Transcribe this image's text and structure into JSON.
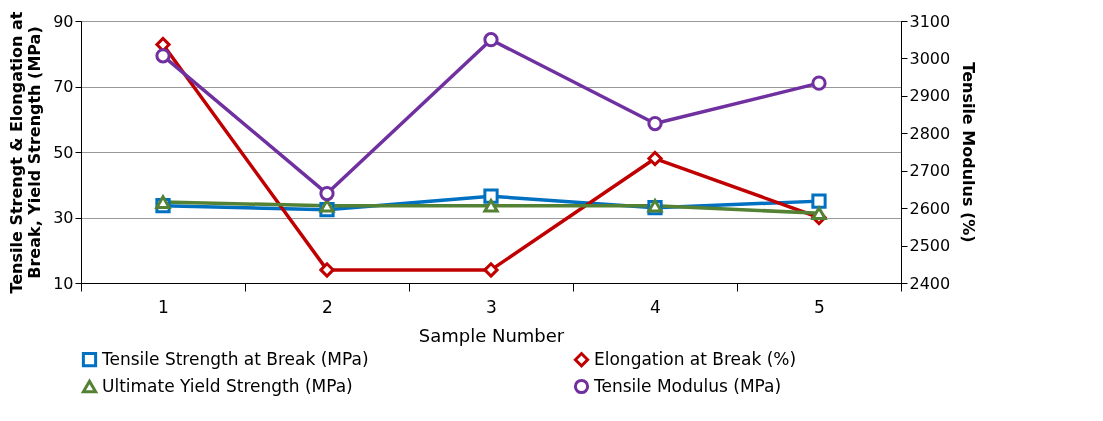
{
  "chart_data": {
    "type": "line",
    "xlabel": "Sample Number",
    "ylabel": "Tensile Strengt & Elongation at Break, Yield Strength (MPa)",
    "y2label": "Tensile Modulus (%)",
    "categories": [
      "1",
      "2",
      "3",
      "4",
      "5"
    ],
    "ylim": [
      10,
      90
    ],
    "yticks": [
      10,
      30,
      50,
      70,
      90
    ],
    "y2lim": [
      2400,
      3100
    ],
    "y2ticks": [
      2400,
      2500,
      2600,
      2700,
      2800,
      2900,
      3000,
      3100
    ],
    "grid": "y",
    "legend": "bottom",
    "line_style": "solid",
    "series": [
      {
        "name": "Tensile Strength at Break (MPa)",
        "color": "#0070c0",
        "marker": "square",
        "values": [
          33.6,
          32.4,
          36.5,
          33,
          35
        ]
      },
      {
        "name": "Elongation at Break (%)",
        "color": "#c00000",
        "marker": "diamond",
        "values": [
          82.8,
          14,
          14,
          48,
          30
        ]
      },
      {
        "name": "Ultimate Yield Strength (MPa)",
        "color": "#548235",
        "marker": "triangle",
        "values": [
          34.7,
          33.6,
          33.6,
          33.6,
          31.3
        ]
      },
      {
        "name": "Tensile Modulus (MPa)",
        "color": "#7030a0",
        "marker": "circle",
        "axis": "y2",
        "values": [
          3007,
          2639,
          3050,
          2826,
          2934
        ]
      }
    ]
  }
}
